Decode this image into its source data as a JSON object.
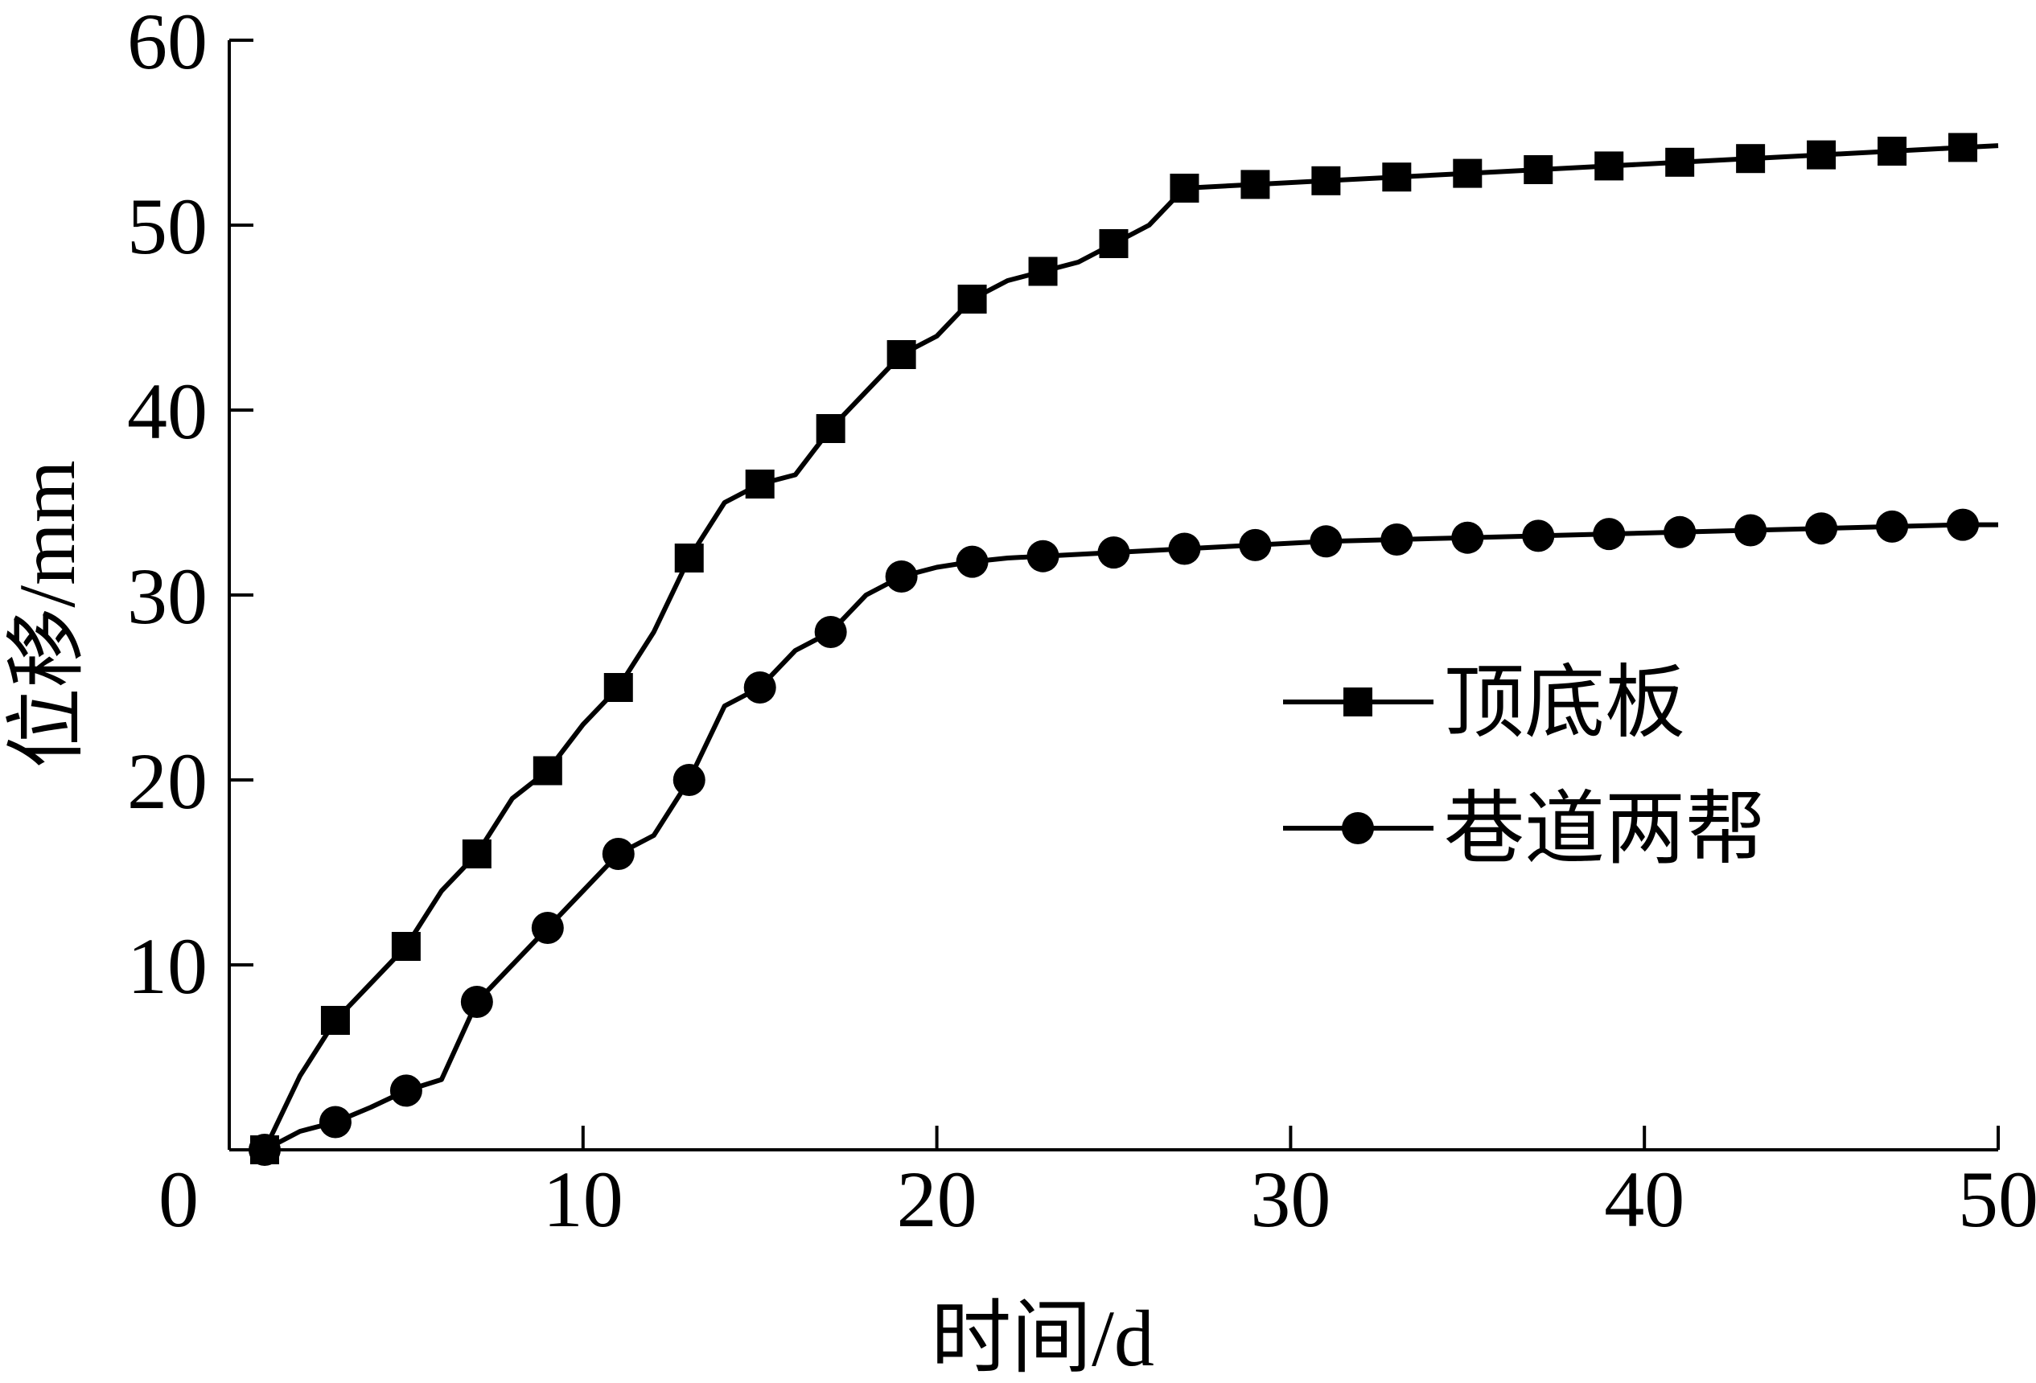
{
  "chart_data": {
    "type": "line",
    "title": "",
    "xlabel": "时间/d",
    "ylabel": "位移/mm",
    "xlim": [
      0,
      50
    ],
    "ylim": [
      0,
      60
    ],
    "xticks": [
      0,
      10,
      20,
      30,
      40,
      50
    ],
    "yticks": [
      10,
      20,
      30,
      40,
      50,
      60
    ],
    "grid": false,
    "legend_position": "right-middle",
    "line_color": "#000000",
    "series": [
      {
        "name": "顶底板",
        "marker": "square",
        "x": [
          1,
          2,
          3,
          4,
          5,
          6,
          7,
          8,
          9,
          10,
          11,
          12,
          13,
          14,
          15,
          16,
          17,
          18,
          19,
          20,
          21,
          22,
          23,
          24,
          25,
          26,
          27,
          29,
          31,
          33,
          35,
          37,
          39,
          41,
          43,
          45,
          47,
          49,
          50
        ],
        "y": [
          0,
          4,
          7,
          9,
          11,
          14,
          16,
          19,
          20.5,
          23,
          25,
          28,
          32,
          35,
          36,
          36.5,
          39,
          41,
          43,
          44,
          46,
          47,
          47.5,
          48,
          49,
          50,
          52,
          52.2,
          52.4,
          52.6,
          52.8,
          53,
          53.2,
          53.4,
          53.6,
          53.8,
          54,
          54.2,
          54.3
        ],
        "marker_x": [
          1,
          3,
          5,
          7,
          9,
          11,
          13,
          15,
          17,
          19,
          21,
          23,
          25,
          27,
          29,
          31,
          33,
          35,
          37,
          39,
          41,
          43,
          45,
          47,
          49
        ]
      },
      {
        "name": "巷道两帮",
        "marker": "circle",
        "x": [
          1,
          2,
          3,
          4,
          5,
          6,
          7,
          8,
          9,
          10,
          11,
          12,
          13,
          14,
          15,
          16,
          17,
          18,
          19,
          20,
          21,
          22,
          23,
          25,
          27,
          29,
          31,
          33,
          35,
          37,
          39,
          41,
          43,
          45,
          47,
          49,
          50
        ],
        "y": [
          0,
          1,
          1.5,
          2.3,
          3.2,
          3.8,
          8,
          10,
          12,
          14,
          16,
          17,
          20,
          24,
          25,
          27,
          28,
          30,
          31,
          31.5,
          31.8,
          32,
          32.1,
          32.3,
          32.5,
          32.7,
          32.9,
          33,
          33.1,
          33.2,
          33.3,
          33.4,
          33.5,
          33.6,
          33.7,
          33.8,
          33.8
        ],
        "marker_x": [
          1,
          3,
          5,
          7,
          9,
          11,
          13,
          15,
          17,
          19,
          21,
          23,
          25,
          27,
          29,
          31,
          33,
          35,
          37,
          39,
          41,
          43,
          45,
          47,
          49
        ]
      }
    ]
  }
}
